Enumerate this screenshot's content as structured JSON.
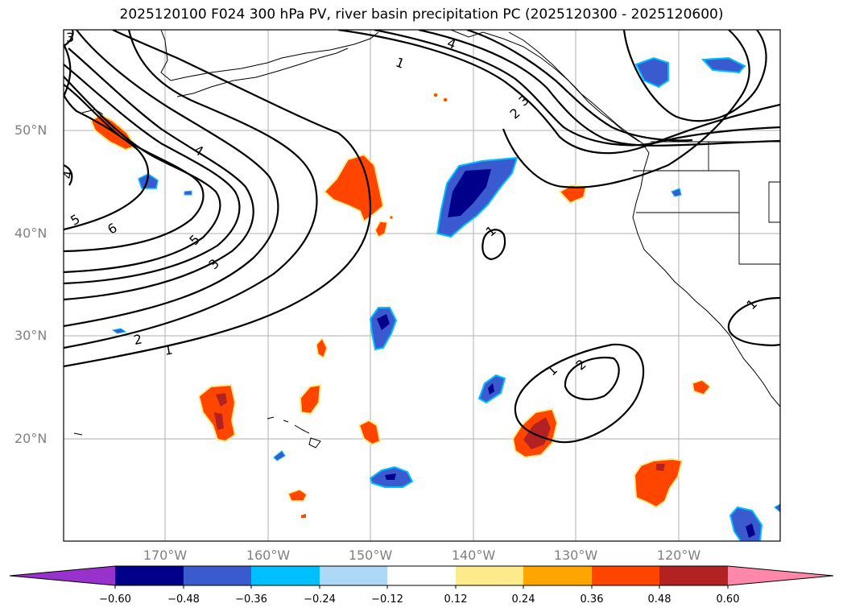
{
  "title": "2025120100 F024 300 hPa PV, river basin precipitation PC (2025120300 - 2025120600)",
  "lat_labels": [
    "50°N",
    "40°N",
    "30°N",
    "20°N"
  ],
  "lon_labels": [
    "170°W",
    "160°W",
    "150°W",
    "140°W",
    "130°W",
    "120°W"
  ],
  "colorbar": {
    "tick_labels": [
      "−0.60",
      "−0.48",
      "−0.36",
      "−0.24",
      "−0.12",
      "0.12",
      "0.24",
      "0.36",
      "0.48",
      "0.60"
    ],
    "colors": [
      "#9932cc",
      "#00008b",
      "#3a5bcf",
      "#00bfff",
      "#add8f6",
      "#ffffff",
      "#fdea8a",
      "#ffa500",
      "#ff4500",
      "#b22222",
      "#ff88aa"
    ]
  },
  "contour_labels": [
    "3",
    "4",
    "5",
    "6",
    "4",
    "5",
    "3",
    "2",
    "1",
    "1",
    "4",
    "3",
    "2",
    "1",
    "1",
    "2",
    "1"
  ],
  "colors": {
    "contour": "#000000",
    "grid": "#b0b0b0",
    "coast": "#000000",
    "label_gray": "#808080"
  }
}
